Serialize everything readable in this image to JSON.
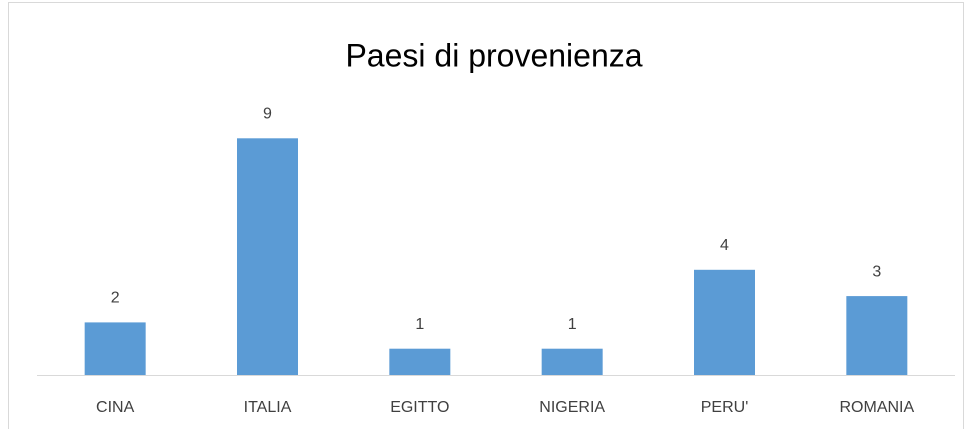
{
  "chart_data": {
    "type": "bar",
    "title": "Paesi di provenienza",
    "categories": [
      "CINA",
      "ITALIA",
      "EGITTO",
      "NIGERIA",
      "PERU'",
      "ROMANIA"
    ],
    "values": [
      2,
      9,
      1,
      1,
      4,
      3
    ],
    "color": "#5b9bd5",
    "ylim": [
      0,
      10
    ],
    "grid": false,
    "data_labels": true
  }
}
